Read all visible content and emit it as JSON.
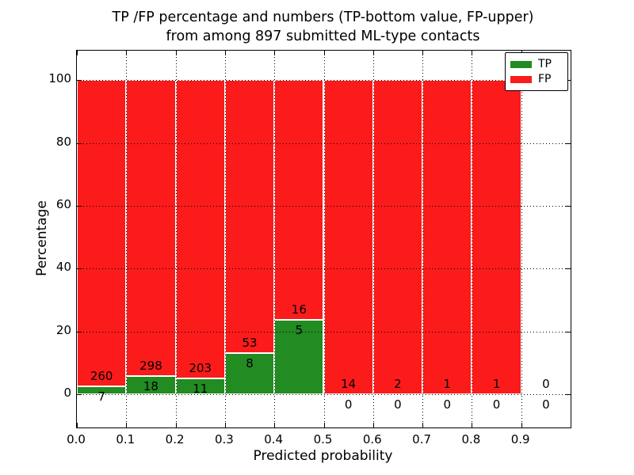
{
  "chart_data": {
    "type": "bar",
    "variant": "stacked-percentage",
    "title_line1": "TP /FP percentage and numbers (TP-bottom value, FP-upper)",
    "title_line2": "from among 897 submitted ML-type contacts",
    "xlabel": "Predicted probability",
    "ylabel": "Percentage",
    "total_contacts": 897,
    "bin_width": 0.1,
    "categories": [
      "0.0-0.1",
      "0.1-0.2",
      "0.2-0.3",
      "0.3-0.4",
      "0.4-0.5",
      "0.5-0.6",
      "0.6-0.7",
      "0.7-0.8",
      "0.8-0.9",
      "0.9-1.0"
    ],
    "series": [
      {
        "name": "TP",
        "color": "#228b22",
        "values": [
          7,
          18,
          11,
          8,
          5,
          0,
          0,
          0,
          0,
          0
        ]
      },
      {
        "name": "FP",
        "color": "#fb1b1b",
        "values": [
          260,
          298,
          203,
          53,
          16,
          14,
          2,
          1,
          1,
          0
        ]
      }
    ],
    "tp_percent_of_bin": [
      2.62,
      5.7,
      5.14,
      13.11,
      23.81,
      0,
      0,
      0,
      0,
      null
    ],
    "xticks": [
      "0.0",
      "0.1",
      "0.2",
      "0.3",
      "0.4",
      "0.5",
      "0.6",
      "0.7",
      "0.8",
      "0.9"
    ],
    "yticks": [
      "0",
      "20",
      "40",
      "60",
      "80",
      "100"
    ],
    "xlim": [
      0.0,
      1.0
    ],
    "ylim": [
      -10.6,
      109.4
    ],
    "grid": "dotted, drawn above bars",
    "legend": {
      "position": "upper-right",
      "entries": [
        {
          "label": "TP",
          "color": "#228b22"
        },
        {
          "label": "FP",
          "color": "#fb1b1b"
        }
      ]
    }
  }
}
